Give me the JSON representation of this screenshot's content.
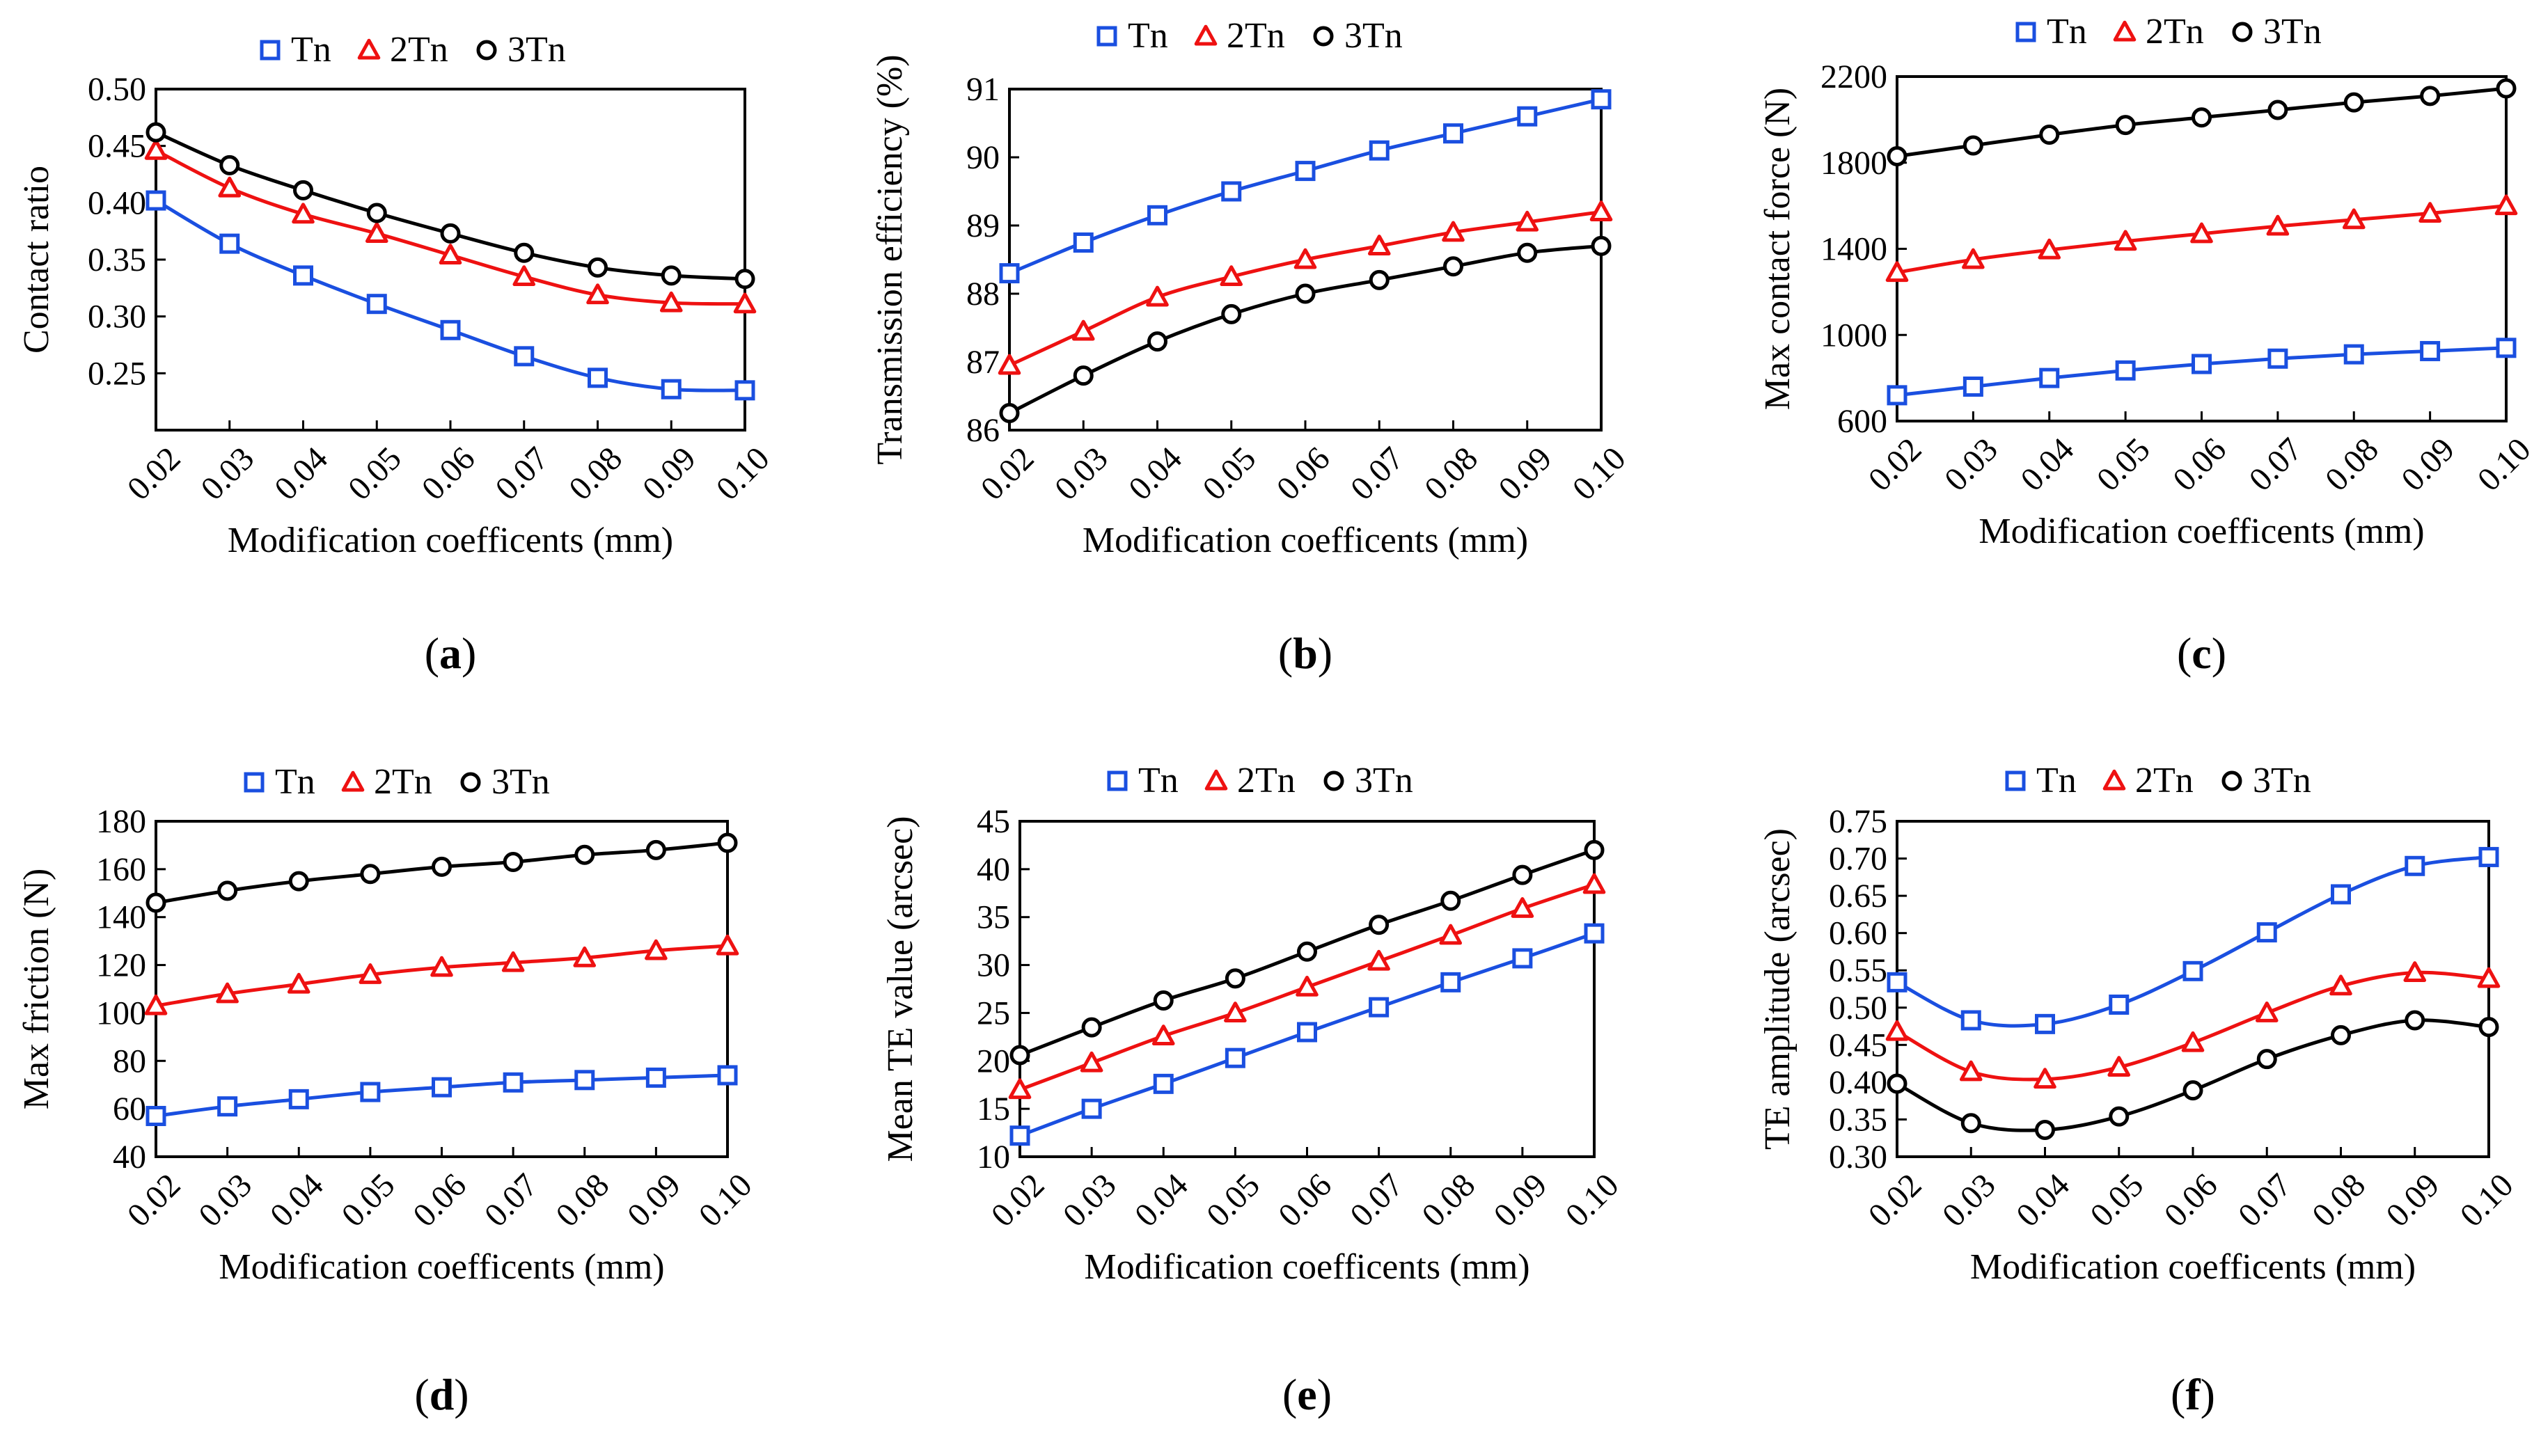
{
  "colors": {
    "Tn": "#1a4fe0",
    "2Tn": "#ee1111",
    "3Tn": "#000000"
  },
  "chart_data": [
    {
      "type": "line",
      "caption": "a",
      "xlabel": "Modification coefficents (mm)",
      "ylabel": "Contact ratio",
      "x": [
        0.02,
        0.03,
        0.04,
        0.05,
        0.06,
        0.07,
        0.08,
        0.09,
        0.1
      ],
      "xtick_labels": [
        "0.02",
        "0.03",
        "0.04",
        "0.05",
        "0.06",
        "0.07",
        "0.08",
        "0.09",
        "0.10"
      ],
      "ylim": [
        0.2,
        0.5
      ],
      "yticks": [
        0.25,
        0.3,
        0.35,
        0.4,
        0.45,
        0.5
      ],
      "ytick_labels": [
        "0.25",
        "0.30",
        "0.35",
        "0.40",
        "0.45",
        "0.50"
      ],
      "series": [
        {
          "name": "Tn",
          "marker": "square",
          "values": [
            0.402,
            0.364,
            0.336,
            0.311,
            0.288,
            0.265,
            0.246,
            0.236,
            0.235
          ]
        },
        {
          "name": "2Tn",
          "marker": "triangle",
          "values": [
            0.446,
            0.413,
            0.39,
            0.373,
            0.354,
            0.335,
            0.319,
            0.312,
            0.311
          ]
        },
        {
          "name": "3Tn",
          "marker": "circle",
          "values": [
            0.462,
            0.433,
            0.411,
            0.391,
            0.373,
            0.356,
            0.343,
            0.336,
            0.333
          ]
        }
      ]
    },
    {
      "type": "line",
      "caption": "b",
      "xlabel": "Modification coefficents (mm)",
      "ylabel": "Transmission efficiency (%)",
      "x": [
        0.02,
        0.03,
        0.04,
        0.05,
        0.06,
        0.07,
        0.08,
        0.09,
        0.1
      ],
      "xtick_labels": [
        "0.02",
        "0.03",
        "0.04",
        "0.05",
        "0.06",
        "0.07",
        "0.08",
        "0.09",
        "0.10"
      ],
      "ylim": [
        86,
        91
      ],
      "yticks": [
        86,
        87,
        88,
        89,
        90,
        91
      ],
      "ytick_labels": [
        "86",
        "87",
        "88",
        "89",
        "90",
        "91"
      ],
      "series": [
        {
          "name": "Tn",
          "marker": "square",
          "values": [
            88.3,
            88.75,
            89.15,
            89.5,
            89.8,
            90.1,
            90.35,
            90.6,
            90.85
          ]
        },
        {
          "name": "2Tn",
          "marker": "triangle",
          "values": [
            86.95,
            87.45,
            87.95,
            88.25,
            88.5,
            88.7,
            88.9,
            89.05,
            89.2
          ]
        },
        {
          "name": "3Tn",
          "marker": "circle",
          "values": [
            86.25,
            86.8,
            87.3,
            87.7,
            88.0,
            88.2,
            88.4,
            88.6,
            88.7
          ]
        }
      ]
    },
    {
      "type": "line",
      "caption": "c",
      "xlabel": "Modification coefficents (mm)",
      "ylabel": "Max contact force (N)",
      "x": [
        0.02,
        0.03,
        0.04,
        0.05,
        0.06,
        0.07,
        0.08,
        0.09,
        0.1
      ],
      "xtick_labels": [
        "0.02",
        "0.03",
        "0.04",
        "0.05",
        "0.06",
        "0.07",
        "0.08",
        "0.09",
        "0.10"
      ],
      "ylim": [
        600,
        2200
      ],
      "yticks": [
        600,
        1000,
        1400,
        1800,
        2200
      ],
      "ytick_labels": [
        "600",
        "1000",
        "1400",
        "1800",
        "2200"
      ],
      "series": [
        {
          "name": "Tn",
          "marker": "square",
          "values": [
            720,
            760,
            800,
            835,
            865,
            890,
            910,
            925,
            940
          ]
        },
        {
          "name": "2Tn",
          "marker": "triangle",
          "values": [
            1290,
            1350,
            1395,
            1435,
            1470,
            1505,
            1535,
            1565,
            1600
          ]
        },
        {
          "name": "3Tn",
          "marker": "circle",
          "values": [
            1830,
            1880,
            1930,
            1975,
            2010,
            2045,
            2080,
            2110,
            2145
          ]
        }
      ]
    },
    {
      "type": "line",
      "caption": "d",
      "xlabel": "Modification coefficents (mm)",
      "ylabel": "Max friction (N)",
      "x": [
        0.02,
        0.03,
        0.04,
        0.05,
        0.06,
        0.07,
        0.08,
        0.09,
        0.1
      ],
      "xtick_labels": [
        "0.02",
        "0.03",
        "0.04",
        "0.05",
        "0.06",
        "0.07",
        "0.08",
        "0.09",
        "0.10"
      ],
      "ylim": [
        40,
        180
      ],
      "yticks": [
        40,
        60,
        80,
        100,
        120,
        140,
        160,
        180
      ],
      "ytick_labels": [
        "40",
        "60",
        "80",
        "100",
        "120",
        "140",
        "160",
        "180"
      ],
      "series": [
        {
          "name": "Tn",
          "marker": "square",
          "values": [
            57,
            61,
            64,
            67,
            69,
            71,
            72,
            73,
            74
          ]
        },
        {
          "name": "2Tn",
          "marker": "triangle",
          "values": [
            103,
            108,
            112,
            116,
            119,
            121,
            123,
            126,
            128
          ]
        },
        {
          "name": "3Tn",
          "marker": "circle",
          "values": [
            146,
            151,
            155,
            158,
            161,
            163,
            166,
            168,
            171
          ]
        }
      ]
    },
    {
      "type": "line",
      "caption": "e",
      "xlabel": "Modification coefficents (mm)",
      "ylabel": "Mean TE  value (arcsec)",
      "x": [
        0.02,
        0.03,
        0.04,
        0.05,
        0.06,
        0.07,
        0.08,
        0.09,
        0.1
      ],
      "xtick_labels": [
        "0.02",
        "0.03",
        "0.04",
        "0.05",
        "0.06",
        "0.07",
        "0.08",
        "0.09",
        "0.10"
      ],
      "ylim": [
        10,
        45
      ],
      "yticks": [
        10,
        15,
        20,
        25,
        30,
        35,
        40,
        45
      ],
      "ytick_labels": [
        "10",
        "15",
        "20",
        "25",
        "30",
        "35",
        "40",
        "45"
      ],
      "series": [
        {
          "name": "Tn",
          "marker": "square",
          "values": [
            12.2,
            15.0,
            17.6,
            20.3,
            23.0,
            25.6,
            28.2,
            30.7,
            33.3
          ]
        },
        {
          "name": "2Tn",
          "marker": "triangle",
          "values": [
            17.0,
            19.8,
            22.6,
            25.0,
            27.7,
            30.4,
            33.1,
            35.9,
            38.4
          ]
        },
        {
          "name": "3Tn",
          "marker": "circle",
          "values": [
            20.6,
            23.5,
            26.3,
            28.6,
            31.4,
            34.2,
            36.7,
            39.4,
            42.0
          ]
        }
      ]
    },
    {
      "type": "line",
      "caption": "f",
      "xlabel": "Modification coefficents (mm)",
      "ylabel": "TE amplitude (arcsec)",
      "x": [
        0.02,
        0.03,
        0.04,
        0.05,
        0.06,
        0.07,
        0.08,
        0.09,
        0.1
      ],
      "xtick_labels": [
        "0.02",
        "0.03",
        "0.04",
        "0.05",
        "0.06",
        "0.07",
        "0.08",
        "0.09",
        "0.10"
      ],
      "ylim": [
        0.3,
        0.75
      ],
      "yticks": [
        0.3,
        0.35,
        0.4,
        0.45,
        0.5,
        0.55,
        0.6,
        0.65,
        0.7,
        0.75
      ],
      "ytick_labels": [
        "0.30",
        "0.35",
        "0.40",
        "0.45",
        "0.50",
        "0.55",
        "0.60",
        "0.65",
        "0.70",
        "0.75"
      ],
      "series": [
        {
          "name": "Tn",
          "marker": "square",
          "values": [
            0.534,
            0.483,
            0.478,
            0.504,
            0.549,
            0.601,
            0.652,
            0.69,
            0.702
          ]
        },
        {
          "name": "2Tn",
          "marker": "triangle",
          "values": [
            0.468,
            0.414,
            0.404,
            0.42,
            0.453,
            0.493,
            0.529,
            0.547,
            0.539
          ]
        },
        {
          "name": "3Tn",
          "marker": "circle",
          "values": [
            0.398,
            0.345,
            0.336,
            0.354,
            0.389,
            0.431,
            0.463,
            0.483,
            0.474
          ]
        }
      ]
    }
  ]
}
